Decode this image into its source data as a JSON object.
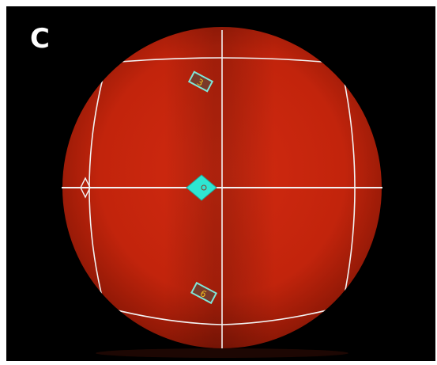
{
  "panel": {
    "label": "C"
  },
  "scene": {
    "sphere_color": "#c8260e",
    "background_color": "#000000",
    "line_color": "#f2f2f2",
    "marker_color": "#2ee6d2",
    "tag_label_color": "#f0c020",
    "markers": {
      "top_tag_label": "3",
      "bottom_tag_label": "6"
    }
  }
}
